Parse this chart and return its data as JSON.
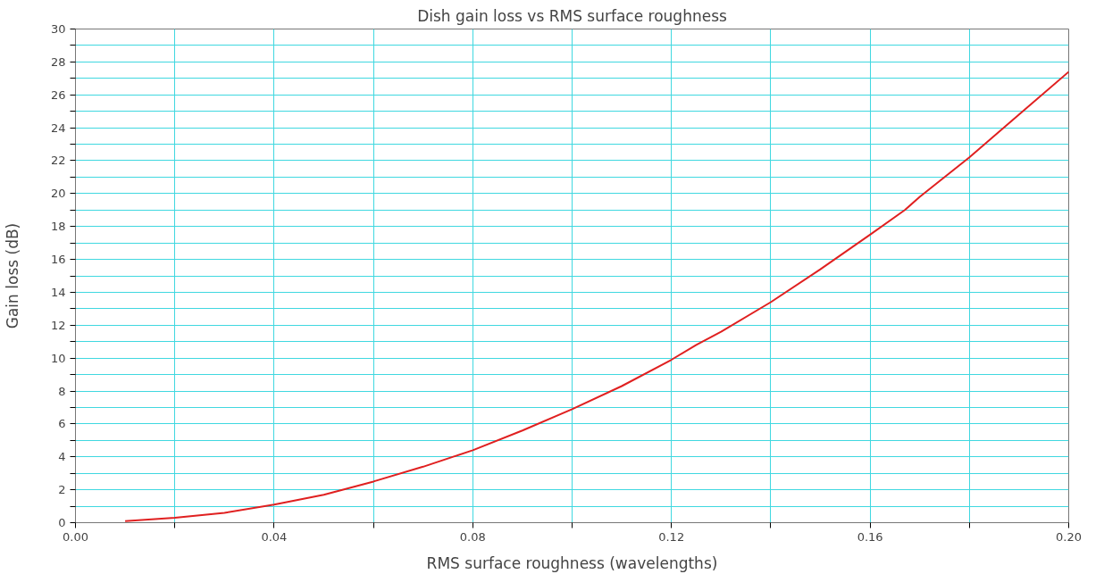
{
  "chart_data": {
    "type": "line",
    "title": "Dish gain loss vs RMS surface roughness",
    "xlabel": "RMS surface roughness (wavelengths)",
    "ylabel": "Gain loss (dB)",
    "x": [
      0.01,
      0.02,
      0.03,
      0.04,
      0.05,
      0.06,
      0.07,
      0.08,
      0.09,
      0.1,
      0.11,
      0.12,
      0.125,
      0.13,
      0.14,
      0.15,
      0.16,
      0.167,
      0.17,
      0.18,
      0.19,
      0.2
    ],
    "series": [
      {
        "color": "#e02020",
        "values": [
          0.1,
          0.3,
          0.6,
          1.1,
          1.7,
          2.5,
          3.4,
          4.4,
          5.6,
          6.9,
          8.3,
          9.9,
          10.8,
          11.6,
          13.4,
          15.4,
          17.5,
          19.0,
          19.8,
          22.2,
          24.8,
          27.4
        ]
      }
    ],
    "xlim": [
      0,
      0.2
    ],
    "ylim": [
      0,
      30
    ],
    "xticks": [
      {
        "value": 0,
        "label": "0.00"
      },
      {
        "value": 0.02,
        "label": null
      },
      {
        "value": 0.04,
        "label": "0.04"
      },
      {
        "value": 0.06,
        "label": null
      },
      {
        "value": 0.08,
        "label": "0.08"
      },
      {
        "value": 0.1,
        "label": null
      },
      {
        "value": 0.12,
        "label": "0.12"
      },
      {
        "value": 0.14,
        "label": null
      },
      {
        "value": 0.16,
        "label": "0.16"
      },
      {
        "value": 0.18,
        "label": null
      },
      {
        "value": 0.2,
        "label": "0.20"
      }
    ],
    "yticks": [
      0,
      {
        "value": 1,
        "label": null
      },
      2,
      {
        "value": 3,
        "label": null
      },
      4,
      {
        "value": 5,
        "label": null
      },
      6,
      {
        "value": 7,
        "label": null
      },
      8,
      {
        "value": 9,
        "label": null
      },
      10,
      {
        "value": 11,
        "label": null
      },
      12,
      {
        "value": 13,
        "label": null
      },
      14,
      {
        "value": 15,
        "label": null
      },
      16,
      {
        "value": 17,
        "label": null
      },
      18,
      {
        "value": 19,
        "label": null
      },
      20,
      {
        "value": 21,
        "label": null
      },
      22,
      {
        "value": 23,
        "label": null
      },
      24,
      {
        "value": 25,
        "label": null
      },
      26,
      {
        "value": 27,
        "label": null
      },
      28,
      {
        "value": 29,
        "label": null
      },
      30
    ],
    "grid": true,
    "line_style": "solid"
  }
}
